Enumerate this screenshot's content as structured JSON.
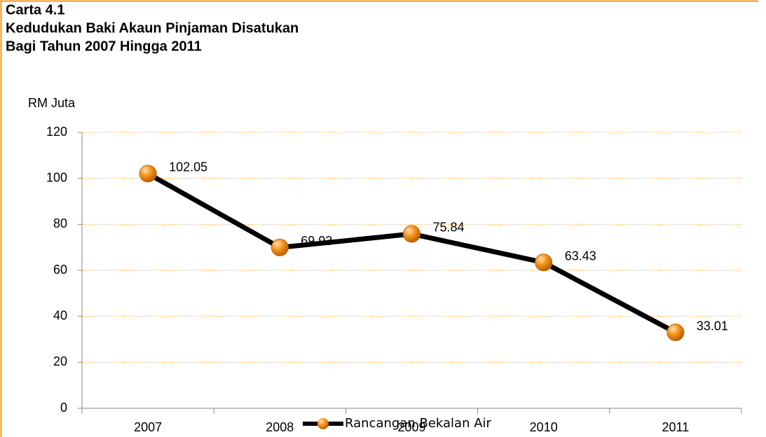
{
  "chart_data": {
    "type": "line",
    "title": [
      "Carta 4.1",
      "Kedudukan Baki Akaun Pinjaman Disatukan",
      "Bagi Tahun 2007 Hingga 2011"
    ],
    "y_label": "RM Juta",
    "categories": [
      "2007",
      "2008",
      "2009",
      "2010",
      "2011"
    ],
    "series": [
      {
        "name": "Rancangan Bekalan Air",
        "color": "#000000",
        "marker_color": "#f7941d",
        "values": [
          102.05,
          69.93,
          75.84,
          63.43,
          33.01
        ]
      }
    ],
    "ylim": [
      0,
      120
    ],
    "yticks": [
      0,
      20,
      40,
      60,
      80,
      100,
      120
    ],
    "grid": true,
    "legend": "bottom"
  }
}
